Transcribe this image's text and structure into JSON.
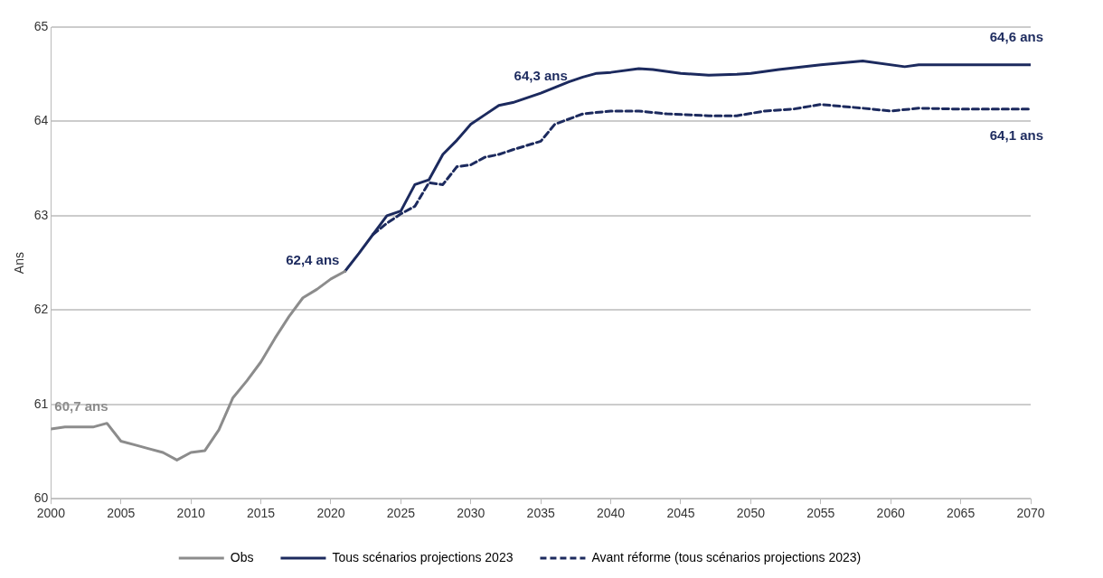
{
  "chart_data": {
    "type": "line",
    "ylabel": "Ans",
    "xlim": [
      2000,
      2070
    ],
    "xticks": [
      2000,
      2005,
      2010,
      2015,
      2020,
      2025,
      2030,
      2035,
      2040,
      2045,
      2050,
      2055,
      2060,
      2065,
      2070
    ],
    "ylim": [
      60,
      65
    ],
    "yticks": [
      60,
      61,
      62,
      63,
      64,
      65
    ],
    "grid": "y",
    "legend": "bottom",
    "marker": "none",
    "series": [
      {
        "name": "Obs",
        "color": "#8c8c8c",
        "line_style": "solid",
        "x": [
          2000,
          2001,
          2002,
          2003,
          2004,
          2005,
          2006,
          2007,
          2008,
          2009,
          2010,
          2011,
          2012,
          2013,
          2014,
          2015,
          2016,
          2017,
          2018,
          2019,
          2020,
          2021
        ],
        "values": [
          60.74,
          60.76,
          60.76,
          60.76,
          60.8,
          60.61,
          60.57,
          60.53,
          60.49,
          60.41,
          60.49,
          60.51,
          60.73,
          61.07,
          61.25,
          61.45,
          61.7,
          61.93,
          62.13,
          62.22,
          62.33,
          62.41
        ]
      },
      {
        "name": "Tous scénarios projections 2023",
        "color": "#1c2a5e",
        "line_style": "solid",
        "x": [
          2021,
          2022,
          2023,
          2024,
          2025,
          2026,
          2027,
          2028,
          2029,
          2030,
          2031,
          2032,
          2033,
          2034,
          2035,
          2036,
          2037,
          2038,
          2039,
          2040,
          2042,
          2043,
          2045,
          2047,
          2049,
          2050,
          2052,
          2055,
          2058,
          2061,
          2062,
          2065,
          2070
        ],
        "values": [
          62.41,
          62.6,
          62.8,
          63.0,
          63.05,
          63.33,
          63.38,
          63.65,
          63.8,
          63.97,
          64.07,
          64.17,
          64.2,
          64.25,
          64.3,
          64.36,
          64.42,
          64.47,
          64.51,
          64.52,
          64.56,
          64.55,
          64.51,
          64.49,
          64.5,
          64.51,
          64.55,
          64.6,
          64.64,
          64.58,
          64.6,
          64.6,
          64.6
        ]
      },
      {
        "name": "Avant réforme (tous scénarios projections 2023)",
        "color": "#1c2a5e",
        "line_style": "dashed",
        "x": [
          2023,
          2024,
          2025,
          2026,
          2027,
          2028,
          2029,
          2030,
          2031,
          2032,
          2033,
          2035,
          2036,
          2038,
          2040,
          2042,
          2044,
          2047,
          2049,
          2051,
          2053,
          2055,
          2058,
          2060,
          2062,
          2065,
          2070
        ],
        "values": [
          62.8,
          62.92,
          63.02,
          63.1,
          63.35,
          63.33,
          63.52,
          63.54,
          63.62,
          63.65,
          63.7,
          63.79,
          63.97,
          64.08,
          64.11,
          64.11,
          64.08,
          64.06,
          64.06,
          64.11,
          64.13,
          64.18,
          64.14,
          64.11,
          64.14,
          64.13,
          64.13
        ]
      }
    ],
    "annotations": [
      {
        "text": "60,7 ans",
        "x": 2000,
        "y": 60.74
      },
      {
        "text": "62,4 ans",
        "x": 2021,
        "y": 62.41
      },
      {
        "text": "64,3 ans",
        "x": 2035,
        "y": 64.3
      },
      {
        "text": "64,6 ans",
        "x": 2070,
        "y": 64.6
      },
      {
        "text": "64,1 ans",
        "x": 2070,
        "y": 64.13
      }
    ]
  }
}
